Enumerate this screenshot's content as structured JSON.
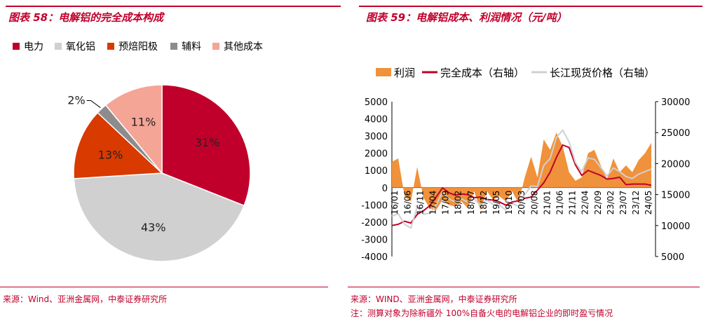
{
  "left": {
    "title": "图表 58：电解铝的完全成本构成",
    "source": "来源：Wind、亚洲金属网，中泰证券研究所"
  },
  "right": {
    "title": "图表 59：电解铝成本、利润情况（元/吨）",
    "source": "来源：WIND、亚洲金属网，中泰证券研究所",
    "note": "注：测算对象为除新疆外 100%自备火电的电解铝企业的即时盈亏情况"
  },
  "colors": {
    "brand": "#c0002b",
    "electricity": "#c0002b",
    "alumina": "#d0d0d0",
    "anode": "#d83a00",
    "auxiliary": "#8c8c8c",
    "other": "#f4a595",
    "profit": "#f0913b",
    "cost_line": "#c0002b",
    "price_line": "#d0d0d0"
  },
  "chart_data": [
    {
      "type": "pie",
      "title": "",
      "legend_position": "top",
      "slices": [
        {
          "name": "电力",
          "value": 31,
          "label": "31%",
          "color": "#c0002b"
        },
        {
          "name": "氧化铝",
          "value": 43,
          "label": "43%",
          "color": "#d0d0d0"
        },
        {
          "name": "预焙阳极",
          "value": 13,
          "label": "13%",
          "color": "#d83a00"
        },
        {
          "name": "辅料",
          "value": 2,
          "label": "2%",
          "color": "#8c8c8c"
        },
        {
          "name": "其他成本",
          "value": 11,
          "label": "11%",
          "color": "#f4a595"
        }
      ]
    },
    {
      "type": "line",
      "title": "",
      "legend_position": "top",
      "x_tick_labels": [
        "16/01",
        "16/06",
        "16/11",
        "17/04",
        "17/09",
        "18/02",
        "18/07",
        "18/12",
        "19/05",
        "19/10",
        "20/03",
        "20/08",
        "21/01",
        "21/06",
        "21/11",
        "22/04",
        "22/09",
        "23/02",
        "23/07",
        "23/12",
        "24/05"
      ],
      "y_left": {
        "ticks": [
          "5000",
          "4000",
          "3000",
          "2000",
          "1000",
          "0",
          "-1000",
          "-2000",
          "-3000",
          "-4000"
        ],
        "ylim": [
          -4000,
          5000
        ]
      },
      "y_right": {
        "ticks": [
          "30000",
          "25000",
          "20000",
          "15000",
          "10000",
          "5000"
        ],
        "ylim": [
          5000,
          30000
        ]
      },
      "series": [
        {
          "name": "利润",
          "kind": "area",
          "axis": "left",
          "color": "#f0913b",
          "values": [
            1500,
            1700,
            -500,
            -800,
            1200,
            -600,
            -1200,
            -1300,
            -700,
            -1000,
            -1100,
            -800,
            -1200,
            -200,
            -1300,
            -200,
            -700,
            -500,
            -800,
            -200,
            -900,
            600,
            1800,
            600,
            2800,
            2200,
            3200,
            2400,
            900,
            400,
            600,
            2000,
            2200,
            1300,
            500,
            1700,
            900,
            1300,
            900,
            1600,
            2000,
            2600
          ]
        },
        {
          "name": "完全成本（右轴）",
          "kind": "line",
          "axis": "right",
          "color": "#c0002b",
          "values": [
            10000,
            10200,
            10700,
            10400,
            11800,
            12400,
            13200,
            14600,
            16100,
            15300,
            14900,
            15100,
            15000,
            14500,
            14600,
            14200,
            14100,
            13800,
            13300,
            13800,
            14000,
            14400,
            14600,
            15700,
            16900,
            18600,
            21000,
            23000,
            22600,
            19800,
            18100,
            18900,
            18500,
            18100,
            17500,
            17600,
            17800,
            16600,
            16700,
            16700,
            16700,
            16500
          ]
        },
        {
          "name": "长江现货价格（右轴）",
          "kind": "line",
          "axis": "right",
          "color": "#d0d0d0",
          "values": [
            11500,
            11900,
            10200,
            9600,
            13000,
            11800,
            12000,
            13300,
            15400,
            14300,
            13800,
            14300,
            13800,
            14300,
            13300,
            14100,
            13400,
            13300,
            12500,
            13600,
            13100,
            15000,
            16400,
            16300,
            19700,
            20800,
            24200,
            25400,
            23500,
            20200,
            18700,
            20900,
            20700,
            19400,
            18000,
            19300,
            18700,
            17900,
            17600,
            18300,
            18700,
            19100
          ]
        }
      ]
    }
  ]
}
